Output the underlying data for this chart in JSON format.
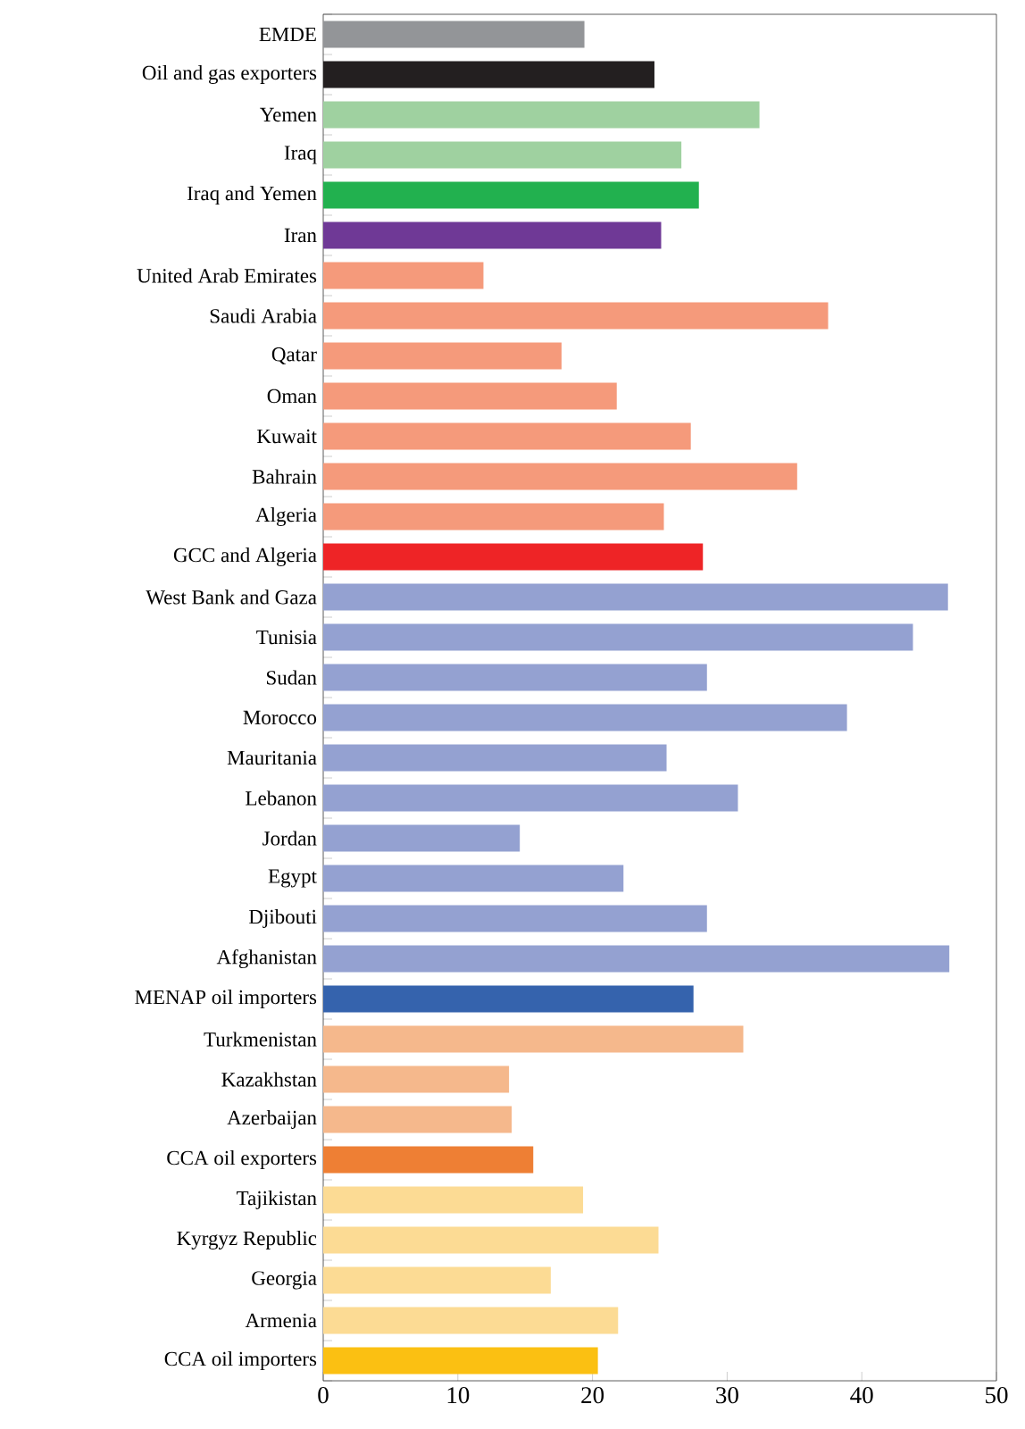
{
  "chart_data": {
    "type": "bar",
    "orientation": "horizontal",
    "categories": [
      "EMDE",
      "Oil and gas exporters",
      "Yemen",
      "Iraq",
      "Iraq and Yemen",
      "Iran",
      "United Arab Emirates",
      "Saudi Arabia",
      "Qatar",
      "Oman",
      "Kuwait",
      "Bahrain",
      "Algeria",
      "GCC and Algeria",
      "West Bank and Gaza",
      "Tunisia",
      "Sudan",
      "Morocco",
      "Mauritania",
      "Lebanon",
      "Jordan",
      "Egypt",
      "Djibouti",
      "Afghanistan",
      "MENAP oil importers",
      "Turkmenistan",
      "Kazakhstan",
      "Azerbaijan",
      "CCA oil exporters",
      "Tajikistan",
      "Kyrgyz Republic",
      "Georgia",
      "Armenia",
      "CCA oil importers"
    ],
    "values": [
      19.4,
      24.6,
      32.4,
      26.6,
      27.9,
      25.1,
      11.9,
      37.5,
      17.7,
      21.8,
      27.3,
      35.2,
      25.3,
      28.2,
      46.4,
      43.8,
      28.5,
      38.9,
      25.5,
      30.8,
      14.6,
      22.3,
      28.5,
      46.5,
      27.5,
      31.2,
      13.8,
      14.0,
      15.6,
      19.3,
      24.9,
      16.9,
      21.9,
      20.4
    ],
    "colors": [
      "#939598",
      "#231f20",
      "#9fd1a0",
      "#9fd1a0",
      "#22b14f",
      "#6f3996",
      "#f59a7b",
      "#f59a7b",
      "#f59a7b",
      "#f59a7b",
      "#f59a7b",
      "#f59a7b",
      "#f59a7b",
      "#ee2426",
      "#94a1d1",
      "#94a1d1",
      "#94a1d1",
      "#94a1d1",
      "#94a1d1",
      "#94a1d1",
      "#94a1d1",
      "#94a1d1",
      "#94a1d1",
      "#94a1d1",
      "#3563ad",
      "#f5b88c",
      "#f5b88c",
      "#f5b88c",
      "#ee7f34",
      "#fcdb94",
      "#fcdb94",
      "#fcdb94",
      "#fcdb94",
      "#fbc012"
    ],
    "xlim": [
      0,
      50
    ],
    "xticks": [
      0,
      10,
      20,
      30,
      40,
      50
    ]
  }
}
